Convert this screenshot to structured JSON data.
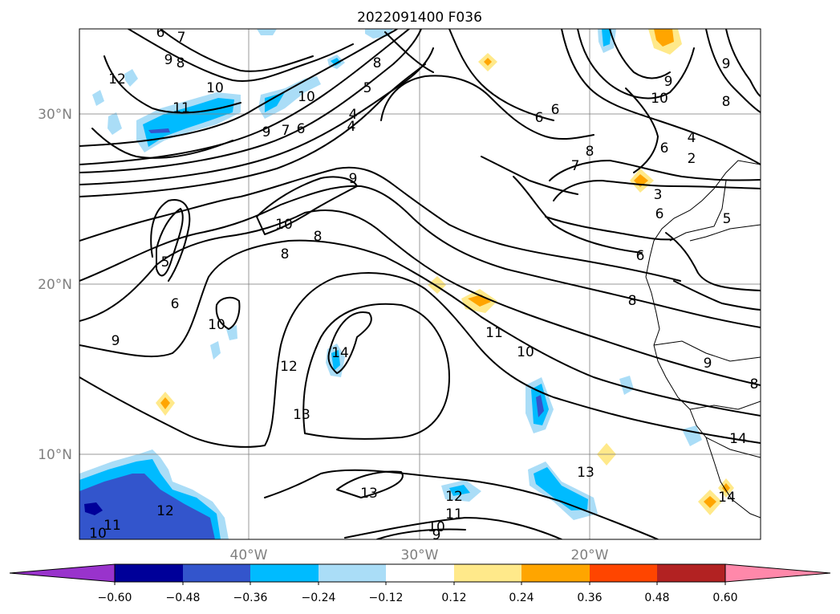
{
  "title": "2022091400 F036",
  "map": {
    "lat_labels": [
      "30°N",
      "20°N",
      "10°N"
    ],
    "lon_labels": [
      "40°W",
      "30°W",
      "20°W"
    ],
    "contour_labels": [
      "6",
      "7",
      "8",
      "9",
      "12",
      "10",
      "11",
      "8",
      "5",
      "4",
      "10",
      "9",
      "7",
      "6",
      "6",
      "6",
      "8",
      "7",
      "2",
      "3",
      "4",
      "6",
      "9",
      "10",
      "8",
      "9",
      "10",
      "8",
      "5",
      "5",
      "6",
      "9",
      "10",
      "14",
      "12",
      "13",
      "11",
      "10",
      "8",
      "13",
      "12",
      "11",
      "10",
      "9",
      "13",
      "14",
      "9",
      "8",
      "14",
      "12",
      "10",
      "11",
      "6",
      "6",
      "8",
      "4",
      "9"
    ],
    "grid": true
  },
  "colorbar": {
    "ticks": [
      "−0.60",
      "−0.48",
      "−0.36",
      "−0.24",
      "−0.12",
      "0.12",
      "0.24",
      "0.36",
      "0.48",
      "0.60"
    ],
    "colors": [
      "#9933cc",
      "#000099",
      "#3355cc",
      "#00bbff",
      "#aaddf7",
      "#ffffff",
      "#ffe98a",
      "#ffa500",
      "#ff4500",
      "#b22222",
      "#ff88aa"
    ]
  }
}
